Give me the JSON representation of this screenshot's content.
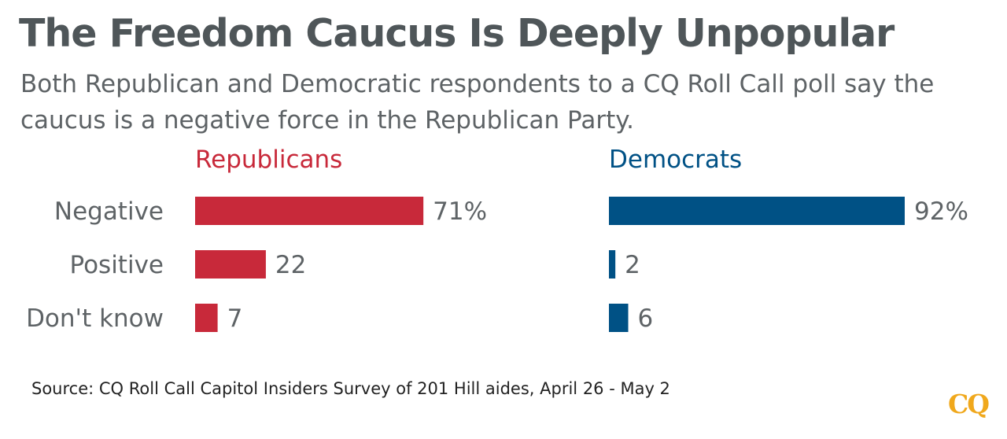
{
  "chart_data": {
    "type": "bar",
    "orientation": "horizontal",
    "title": "The Freedom Caucus Is Deeply Unpopular",
    "subtitle": "Both Republican and Democratic respondents to a CQ Roll Call poll say the caucus is a negative force in the Republican Party.",
    "categories": [
      "Negative",
      "Positive",
      "Don't know"
    ],
    "series": [
      {
        "name": "Republicans",
        "color": "#c8293a",
        "values": [
          71,
          22,
          7
        ],
        "labels": [
          "71%",
          "22",
          "7"
        ]
      },
      {
        "name": "Democrats",
        "color": "#005185",
        "values": [
          92,
          2,
          6
        ],
        "labels": [
          "92%",
          "2",
          "6"
        ]
      }
    ],
    "xlim": [
      0,
      100
    ],
    "grid": false,
    "source": "Source: CQ Roll Call Capitol Insiders Survey of 201 Hill aides, April 26 - May 2"
  },
  "logo_text": "CQ",
  "colors": {
    "title": "#4f5659",
    "text": "#5e6366",
    "logo": "#f0a81c"
  }
}
